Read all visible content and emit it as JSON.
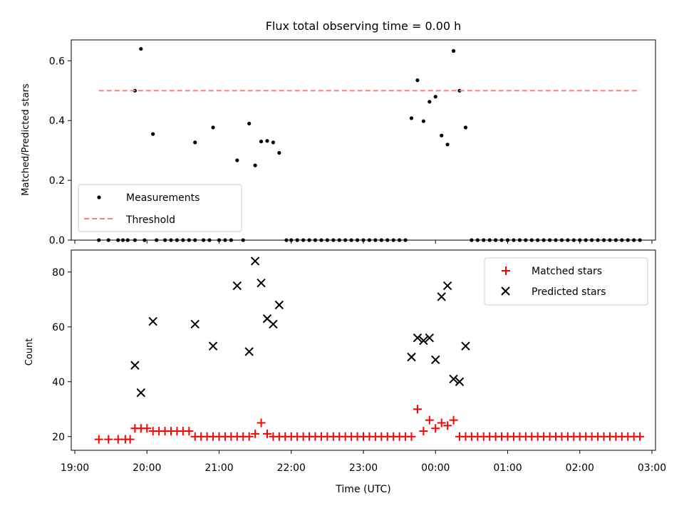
{
  "chart_data": [
    {
      "type": "scatter",
      "title": "Flux total observing time = 0.00 h",
      "xlabel": "",
      "ylabel": "Matched/Predicted stars",
      "xlim": [
        "19:00",
        "03:00"
      ],
      "ylim": [
        0,
        0.67
      ],
      "yticks": [
        "0.0",
        "0.2",
        "0.4",
        "0.6"
      ],
      "legend_position": "lower-left",
      "series": [
        {
          "name": "Measurements",
          "kind": "scatter",
          "color": "#000000",
          "points": [
            [
              "19:20",
              0
            ],
            [
              "19:28",
              0
            ],
            [
              "19:36",
              0
            ],
            [
              "19:40",
              0
            ],
            [
              "19:44",
              0
            ],
            [
              "19:50",
              0
            ],
            [
              "19:58",
              0
            ],
            [
              "20:08",
              0
            ],
            [
              "20:15",
              0
            ],
            [
              "20:20",
              0
            ],
            [
              "20:25",
              0
            ],
            [
              "20:30",
              0
            ],
            [
              "20:35",
              0
            ],
            [
              "20:40",
              0
            ],
            [
              "20:47",
              0
            ],
            [
              "20:52",
              0
            ],
            [
              "21:00",
              0
            ],
            [
              "21:05",
              0
            ],
            [
              "21:10",
              0
            ],
            [
              "21:20",
              0
            ],
            [
              "21:56",
              0
            ],
            [
              "22:00",
              0
            ],
            [
              "22:05",
              0
            ],
            [
              "22:10",
              0
            ],
            [
              "22:15",
              0
            ],
            [
              "22:20",
              0
            ],
            [
              "22:25",
              0
            ],
            [
              "22:30",
              0
            ],
            [
              "22:35",
              0
            ],
            [
              "22:40",
              0
            ],
            [
              "22:45",
              0
            ],
            [
              "22:50",
              0
            ],
            [
              "22:55",
              0
            ],
            [
              "23:00",
              0
            ],
            [
              "23:05",
              0
            ],
            [
              "23:10",
              0
            ],
            [
              "23:15",
              0
            ],
            [
              "23:20",
              0
            ],
            [
              "23:25",
              0
            ],
            [
              "23:30",
              0
            ],
            [
              "23:35",
              0
            ],
            [
              "00:30",
              0
            ],
            [
              "00:35",
              0
            ],
            [
              "00:40",
              0
            ],
            [
              "00:45",
              0
            ],
            [
              "00:50",
              0
            ],
            [
              "00:55",
              0
            ],
            [
              "01:00",
              0
            ],
            [
              "01:05",
              0
            ],
            [
              "01:10",
              0
            ],
            [
              "01:15",
              0
            ],
            [
              "01:20",
              0
            ],
            [
              "01:25",
              0
            ],
            [
              "01:30",
              0
            ],
            [
              "01:35",
              0
            ],
            [
              "01:40",
              0
            ],
            [
              "01:45",
              0
            ],
            [
              "01:50",
              0
            ],
            [
              "01:55",
              0
            ],
            [
              "02:00",
              0
            ],
            [
              "02:05",
              0
            ],
            [
              "02:10",
              0
            ],
            [
              "02:15",
              0
            ],
            [
              "02:20",
              0
            ],
            [
              "02:25",
              0
            ],
            [
              "02:30",
              0
            ],
            [
              "02:35",
              0
            ],
            [
              "02:40",
              0
            ],
            [
              "02:45",
              0
            ],
            [
              "02:50",
              0
            ],
            [
              "19:50",
              0.5
            ],
            [
              "19:55",
              0.64
            ],
            [
              "20:05",
              0.355
            ],
            [
              "20:40",
              0.327
            ],
            [
              "20:55",
              0.377
            ],
            [
              "21:15",
              0.267
            ],
            [
              "21:25",
              0.39
            ],
            [
              "21:30",
              0.25
            ],
            [
              "21:35",
              0.33
            ],
            [
              "21:40",
              0.332
            ],
            [
              "21:45",
              0.327
            ],
            [
              "21:50",
              0.292
            ],
            [
              "23:40",
              0.408
            ],
            [
              "23:45",
              0.535
            ],
            [
              "23:50",
              0.398
            ],
            [
              "23:55",
              0.463
            ],
            [
              "00:00",
              0.48
            ],
            [
              "00:05",
              0.35
            ],
            [
              "00:10",
              0.32
            ],
            [
              "00:15",
              0.633
            ],
            [
              "00:20",
              0.5
            ],
            [
              "00:25",
              0.377
            ]
          ]
        },
        {
          "name": "Threshold",
          "kind": "line",
          "color": "#ff7f7f",
          "dashed": true,
          "points": [
            [
              "19:20",
              0.5
            ],
            [
              "02:50",
              0.5
            ]
          ]
        }
      ]
    },
    {
      "type": "scatter",
      "title": "",
      "xlabel": "Time (UTC)",
      "ylabel": "Count",
      "xlim": [
        "19:00",
        "03:00"
      ],
      "ylim": [
        15,
        88
      ],
      "yticks": [
        "20",
        "40",
        "60",
        "80"
      ],
      "xticks": [
        "19:00",
        "20:00",
        "21:00",
        "22:00",
        "23:00",
        "00:00",
        "01:00",
        "02:00",
        "03:00"
      ],
      "legend_position": "top-right",
      "series": [
        {
          "name": "Matched stars",
          "kind": "scatter",
          "marker": "plus",
          "color": "#ff0000",
          "points": [
            [
              "19:20",
              19
            ],
            [
              "19:28",
              19
            ],
            [
              "19:36",
              19
            ],
            [
              "19:42",
              19
            ],
            [
              "19:46",
              19
            ],
            [
              "19:50",
              23
            ],
            [
              "19:55",
              23
            ],
            [
              "20:00",
              23
            ],
            [
              "20:05",
              22
            ],
            [
              "20:10",
              22
            ],
            [
              "20:15",
              22
            ],
            [
              "20:20",
              22
            ],
            [
              "20:25",
              22
            ],
            [
              "20:30",
              22
            ],
            [
              "20:35",
              22
            ],
            [
              "20:40",
              20
            ],
            [
              "20:45",
              20
            ],
            [
              "20:50",
              20
            ],
            [
              "20:55",
              20
            ],
            [
              "21:00",
              20
            ],
            [
              "21:05",
              20
            ],
            [
              "21:10",
              20
            ],
            [
              "21:15",
              20
            ],
            [
              "21:20",
              20
            ],
            [
              "21:25",
              20
            ],
            [
              "21:30",
              21
            ],
            [
              "21:35",
              25
            ],
            [
              "21:40",
              21
            ],
            [
              "21:45",
              20
            ],
            [
              "21:50",
              20
            ],
            [
              "21:55",
              20
            ],
            [
              "22:00",
              20
            ],
            [
              "22:05",
              20
            ],
            [
              "22:10",
              20
            ],
            [
              "22:15",
              20
            ],
            [
              "22:20",
              20
            ],
            [
              "22:25",
              20
            ],
            [
              "22:30",
              20
            ],
            [
              "22:35",
              20
            ],
            [
              "22:40",
              20
            ],
            [
              "22:45",
              20
            ],
            [
              "22:50",
              20
            ],
            [
              "22:55",
              20
            ],
            [
              "23:00",
              20
            ],
            [
              "23:05",
              20
            ],
            [
              "23:10",
              20
            ],
            [
              "23:15",
              20
            ],
            [
              "23:20",
              20
            ],
            [
              "23:25",
              20
            ],
            [
              "23:30",
              20
            ],
            [
              "23:35",
              20
            ],
            [
              "23:40",
              20
            ],
            [
              "23:45",
              30
            ],
            [
              "23:50",
              22
            ],
            [
              "23:55",
              26
            ],
            [
              "00:00",
              23
            ],
            [
              "00:05",
              25
            ],
            [
              "00:10",
              24
            ],
            [
              "00:15",
              26
            ],
            [
              "00:20",
              20
            ],
            [
              "00:25",
              20
            ],
            [
              "00:30",
              20
            ],
            [
              "00:35",
              20
            ],
            [
              "00:40",
              20
            ],
            [
              "00:45",
              20
            ],
            [
              "00:50",
              20
            ],
            [
              "00:55",
              20
            ],
            [
              "01:00",
              20
            ],
            [
              "01:05",
              20
            ],
            [
              "01:10",
              20
            ],
            [
              "01:15",
              20
            ],
            [
              "01:20",
              20
            ],
            [
              "01:25",
              20
            ],
            [
              "01:30",
              20
            ],
            [
              "01:35",
              20
            ],
            [
              "01:40",
              20
            ],
            [
              "01:45",
              20
            ],
            [
              "01:50",
              20
            ],
            [
              "01:55",
              20
            ],
            [
              "02:00",
              20
            ],
            [
              "02:05",
              20
            ],
            [
              "02:10",
              20
            ],
            [
              "02:15",
              20
            ],
            [
              "02:20",
              20
            ],
            [
              "02:25",
              20
            ],
            [
              "02:30",
              20
            ],
            [
              "02:35",
              20
            ],
            [
              "02:40",
              20
            ],
            [
              "02:45",
              20
            ],
            [
              "02:50",
              20
            ]
          ]
        },
        {
          "name": "Predicted stars",
          "kind": "scatter",
          "marker": "x",
          "color": "#000000",
          "points": [
            [
              "19:50",
              46
            ],
            [
              "19:55",
              36
            ],
            [
              "20:05",
              62
            ],
            [
              "20:40",
              61
            ],
            [
              "20:55",
              53
            ],
            [
              "21:15",
              75
            ],
            [
              "21:25",
              51
            ],
            [
              "21:30",
              84
            ],
            [
              "21:35",
              76
            ],
            [
              "21:40",
              63
            ],
            [
              "21:45",
              61
            ],
            [
              "21:50",
              68
            ],
            [
              "23:40",
              49
            ],
            [
              "23:45",
              56
            ],
            [
              "23:50",
              55
            ],
            [
              "23:55",
              56
            ],
            [
              "00:00",
              48
            ],
            [
              "00:05",
              71
            ],
            [
              "00:10",
              75
            ],
            [
              "00:15",
              41
            ],
            [
              "00:20",
              40
            ],
            [
              "00:25",
              53
            ]
          ]
        }
      ]
    }
  ]
}
